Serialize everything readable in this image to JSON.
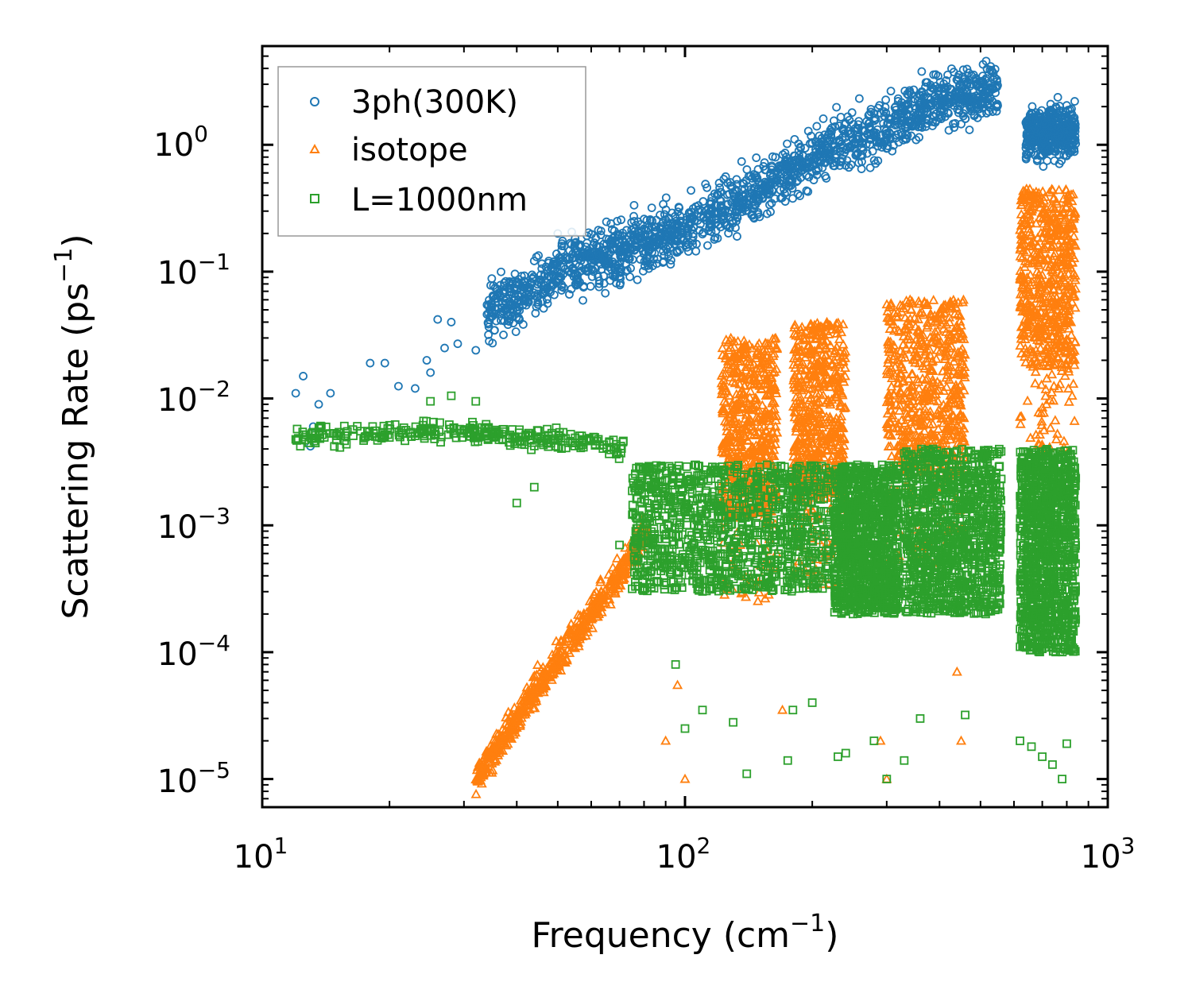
{
  "chart_data": {
    "type": "scatter",
    "title": "",
    "xlabel": {
      "main": "Frequency (cm",
      "sup": "−1",
      "end": ")"
    },
    "ylabel": {
      "main": "Scattering Rate (ps",
      "sup": "−1",
      "end": ")"
    },
    "xscale": "log",
    "yscale": "log",
    "xlim": [
      10,
      1000
    ],
    "ylim": [
      6e-06,
      6
    ],
    "xticks": [
      {
        "base": "10",
        "exp": "1",
        "value": 10
      },
      {
        "base": "10",
        "exp": "2",
        "value": 100
      },
      {
        "base": "10",
        "exp": "3",
        "value": 1000
      }
    ],
    "yticks": [
      {
        "base": "10",
        "exp": "0",
        "value": 1
      },
      {
        "base": "10",
        "exp": "−1",
        "value": 0.1
      },
      {
        "base": "10",
        "exp": "−2",
        "value": 0.01
      },
      {
        "base": "10",
        "exp": "−3",
        "value": 0.001
      },
      {
        "base": "10",
        "exp": "−4",
        "value": 0.0001
      },
      {
        "base": "10",
        "exp": "−5",
        "value": 1e-05
      }
    ],
    "grid": false,
    "legend_position": "top-left",
    "series": [
      {
        "name": "3ph(300K)",
        "marker": "circle",
        "color": "#1f77b4",
        "bands": [
          [
            12,
            0.011
          ],
          [
            15,
            0.011
          ],
          [
            18,
            0.018
          ],
          [
            22,
            0.015
          ],
          [
            26,
            0.03
          ],
          [
            30,
            0.04
          ],
          [
            40,
            0.06
          ],
          [
            50,
            0.1
          ],
          [
            60,
            0.12
          ],
          [
            80,
            0.17
          ],
          [
            100,
            0.22
          ],
          [
            130,
            0.33
          ],
          [
            160,
            0.5
          ],
          [
            200,
            0.8
          ],
          [
            250,
            1.1
          ],
          [
            300,
            1.4
          ],
          [
            350,
            1.9
          ],
          [
            400,
            2.4
          ],
          [
            550,
            2.6
          ]
        ],
        "bands2": [
          [
            640,
            1.2
          ],
          [
            840,
            1.3
          ]
        ],
        "points": [
          [
            12,
            0.011
          ],
          [
            12.5,
            0.015
          ],
          [
            13,
            0.0042
          ],
          [
            13.2,
            0.006
          ],
          [
            13.6,
            0.009
          ],
          [
            14.5,
            0.011
          ],
          [
            18,
            0.019
          ],
          [
            19.5,
            0.019
          ],
          [
            21,
            0.0125
          ],
          [
            23,
            0.012
          ],
          [
            24.5,
            0.02
          ],
          [
            25,
            0.016
          ],
          [
            26,
            0.042
          ],
          [
            27,
            0.025
          ],
          [
            28,
            0.04
          ],
          [
            29,
            0.027
          ],
          [
            32,
            0.024
          ],
          [
            50,
            0.2
          ]
        ]
      },
      {
        "name": "isotope",
        "marker": "triangle",
        "color": "#ff7f0e",
        "bands": [
          [
            32,
            1e-05
          ],
          [
            40,
            3e-05
          ],
          [
            50,
            9e-05
          ],
          [
            60,
            0.0002
          ],
          [
            70,
            0.0004
          ],
          [
            80,
            0.0009
          ]
        ],
        "spikes": [
          [
            122,
            165,
            0.03
          ],
          [
            180,
            240,
            0.04
          ],
          [
            300,
            460,
            0.06
          ],
          [
            620,
            840,
            0.45
          ]
        ],
        "points": [
          [
            90,
            2e-05
          ],
          [
            96,
            5.5e-05
          ],
          [
            100,
            1e-05
          ],
          [
            170,
            3.5e-05
          ],
          [
            290,
            2e-05
          ],
          [
            300,
            1e-05
          ],
          [
            440,
            7e-05
          ],
          [
            450,
            2e-05
          ]
        ]
      },
      {
        "name": "L=1000nm",
        "marker": "square",
        "color": "#2ca02c",
        "baseline": [
          [
            12,
            0.005
          ],
          [
            20,
            0.0055
          ],
          [
            30,
            0.0055
          ],
          [
            40,
            0.005
          ],
          [
            50,
            0.0048
          ],
          [
            60,
            0.0045
          ],
          [
            70,
            0.004
          ]
        ],
        "clusters": [
          [
            75,
            220,
            0.003,
            0.0003
          ],
          [
            225,
            320,
            0.003,
            0.0002
          ],
          [
            330,
            560,
            0.004,
            0.0002
          ],
          [
            620,
            840,
            0.004,
            0.0001
          ]
        ],
        "points": [
          [
            25,
            0.0095
          ],
          [
            28,
            0.0105
          ],
          [
            32,
            0.0095
          ],
          [
            40,
            0.0015
          ],
          [
            44,
            0.002
          ],
          [
            70,
            0.0007
          ],
          [
            95,
            8e-05
          ],
          [
            100,
            2.5e-05
          ],
          [
            110,
            3.5e-05
          ],
          [
            130,
            2.8e-05
          ],
          [
            140,
            1.1e-05
          ],
          [
            175,
            1.4e-05
          ],
          [
            180,
            3.5e-05
          ],
          [
            200,
            4e-05
          ],
          [
            230,
            1.5e-05
          ],
          [
            240,
            1.6e-05
          ],
          [
            280,
            2e-05
          ],
          [
            300,
            1e-05
          ],
          [
            330,
            1.4e-05
          ],
          [
            360,
            3e-05
          ],
          [
            460,
            3.2e-05
          ],
          [
            620,
            2e-05
          ],
          [
            660,
            1.8e-05
          ],
          [
            700,
            1.5e-05
          ],
          [
            740,
            1.3e-05
          ],
          [
            780,
            1e-05
          ],
          [
            800,
            1.9e-05
          ]
        ]
      }
    ]
  }
}
